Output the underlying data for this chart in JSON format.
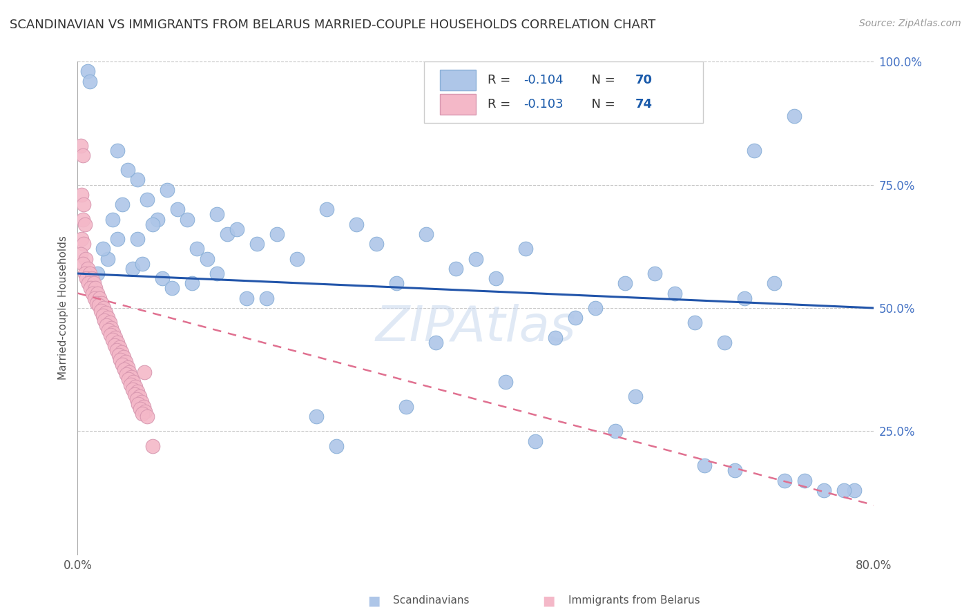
{
  "title": "SCANDINAVIAN VS IMMIGRANTS FROM BELARUS MARRIED-COUPLE HOUSEHOLDS CORRELATION CHART",
  "source": "Source: ZipAtlas.com",
  "ylabel": "Married-couple Households",
  "xlim": [
    0,
    80
  ],
  "ylim": [
    0,
    100
  ],
  "legend_blue_r": "R = -0.104",
  "legend_blue_n": "N = 70",
  "legend_pink_r": "R = -0.103",
  "legend_pink_n": "N = 74",
  "blue_color": "#aec6e8",
  "blue_line_color": "#2255aa",
  "pink_color": "#f4b8c8",
  "pink_line_color": "#e07090",
  "background_color": "#ffffff",
  "grid_color": "#c8c8c8",
  "title_fontsize": 13,
  "source_fontsize": 10,
  "label_fontsize": 11,
  "tick_fontsize": 12,
  "ytick_color": "#4472c4",
  "scan_x": [
    1.0,
    1.2,
    4.0,
    6.0,
    3.5,
    8.0,
    5.0,
    12.0,
    15.0,
    18.0,
    10.0,
    7.0,
    13.0,
    16.0,
    9.0,
    6.0,
    4.5,
    7.5,
    11.0,
    14.0,
    20.0,
    25.0,
    22.0,
    30.0,
    28.0,
    35.0,
    32.0,
    40.0,
    38.0,
    45.0,
    42.0,
    50.0,
    48.0,
    55.0,
    52.0,
    58.0,
    60.0,
    62.0,
    65.0,
    67.0,
    68.0,
    70.0,
    72.0,
    75.0,
    78.0,
    2.0,
    3.0,
    5.5,
    8.5,
    11.5,
    2.5,
    4.0,
    6.5,
    9.5,
    14.0,
    17.0,
    19.0,
    24.0,
    26.0,
    33.0,
    36.0,
    43.0,
    46.0,
    54.0,
    56.0,
    63.0,
    66.0,
    71.0,
    73.0,
    77.0
  ],
  "scan_y": [
    98.0,
    96.0,
    82.0,
    76.0,
    68.0,
    68.0,
    78.0,
    62.0,
    65.0,
    63.0,
    70.0,
    72.0,
    60.0,
    66.0,
    74.0,
    64.0,
    71.0,
    67.0,
    68.0,
    69.0,
    65.0,
    70.0,
    60.0,
    63.0,
    67.0,
    65.0,
    55.0,
    60.0,
    58.0,
    62.0,
    56.0,
    48.0,
    44.0,
    55.0,
    50.0,
    57.0,
    53.0,
    47.0,
    43.0,
    52.0,
    82.0,
    55.0,
    89.0,
    13.0,
    13.0,
    57.0,
    60.0,
    58.0,
    56.0,
    55.0,
    62.0,
    64.0,
    59.0,
    54.0,
    57.0,
    52.0,
    52.0,
    28.0,
    22.0,
    30.0,
    43.0,
    35.0,
    23.0,
    25.0,
    32.0,
    18.0,
    17.0,
    15.0,
    15.0,
    13.0
  ],
  "bel_x": [
    0.3,
    0.5,
    0.4,
    0.6,
    0.5,
    0.7,
    0.4,
    0.6,
    0.3,
    0.8,
    0.5,
    1.0,
    0.7,
    1.2,
    0.9,
    1.4,
    1.1,
    1.6,
    1.3,
    1.8,
    1.5,
    2.0,
    1.7,
    2.2,
    1.9,
    2.4,
    2.1,
    2.6,
    2.3,
    2.8,
    2.5,
    3.0,
    2.7,
    3.2,
    2.9,
    3.4,
    3.1,
    3.6,
    3.3,
    3.8,
    3.5,
    4.0,
    3.7,
    4.2,
    3.9,
    4.4,
    4.1,
    4.6,
    4.3,
    4.8,
    4.5,
    5.0,
    4.7,
    5.2,
    4.9,
    5.4,
    5.1,
    5.6,
    5.3,
    5.8,
    5.5,
    6.0,
    5.7,
    6.2,
    5.9,
    6.4,
    6.1,
    6.6,
    6.3,
    6.8,
    6.5,
    7.0,
    6.7,
    7.5
  ],
  "bel_y": [
    83.0,
    81.0,
    73.0,
    71.0,
    68.0,
    67.0,
    64.0,
    63.0,
    61.0,
    60.0,
    59.0,
    58.0,
    57.0,
    57.0,
    56.0,
    56.0,
    55.0,
    55.0,
    54.0,
    54.0,
    53.0,
    53.0,
    52.0,
    52.0,
    51.0,
    51.0,
    50.5,
    50.0,
    49.5,
    49.0,
    48.5,
    48.0,
    47.5,
    47.0,
    46.5,
    46.0,
    45.5,
    45.0,
    44.5,
    44.0,
    43.5,
    43.0,
    42.5,
    42.0,
    41.5,
    41.0,
    40.5,
    40.0,
    39.5,
    39.0,
    38.5,
    38.0,
    37.5,
    37.0,
    36.5,
    36.0,
    35.5,
    35.0,
    34.5,
    34.0,
    33.5,
    33.0,
    32.5,
    32.0,
    31.5,
    31.0,
    30.5,
    30.0,
    29.5,
    29.0,
    28.5,
    28.0,
    37.0,
    22.0
  ],
  "blue_line_x": [
    0,
    80
  ],
  "blue_line_y": [
    57,
    50
  ],
  "pink_line_x": [
    0,
    80
  ],
  "pink_line_y": [
    53,
    10
  ]
}
